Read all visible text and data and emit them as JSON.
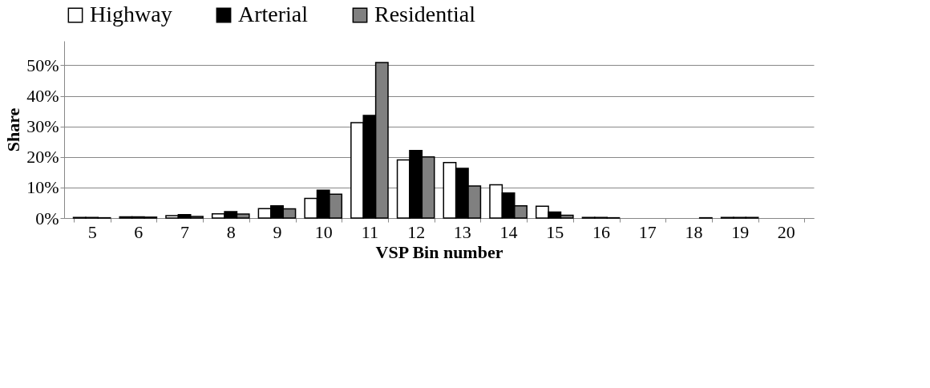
{
  "chart_data": {
    "type": "bar",
    "xlabel": "VSP Bin number",
    "ylabel": "Share",
    "categories": [
      "5",
      "6",
      "7",
      "8",
      "9",
      "10",
      "11",
      "12",
      "13",
      "14",
      "15",
      "16",
      "17",
      "18",
      "19",
      "20"
    ],
    "series": [
      {
        "name": "Highway",
        "color": "#ffffff",
        "values": [
          0.2,
          0.4,
          0.8,
          1.4,
          3.1,
          6.4,
          31.2,
          19.0,
          18.2,
          10.9,
          3.9,
          0.2,
          0,
          0,
          0.2,
          0
        ]
      },
      {
        "name": "Arterial",
        "color": "#000000",
        "values": [
          0.2,
          0.4,
          1.1,
          2.1,
          4.0,
          9.1,
          33.6,
          22.1,
          16.3,
          8.2,
          2.0,
          0.2,
          0,
          0,
          0.2,
          0
        ]
      },
      {
        "name": "Residential",
        "color": "#808080",
        "values": [
          0.1,
          0.3,
          0.5,
          1.3,
          3.0,
          7.8,
          50.9,
          20.0,
          10.5,
          4.0,
          0.9,
          0.1,
          0,
          0.1,
          0.2,
          0
        ]
      }
    ],
    "ylim": [
      0,
      58
    ],
    "yticks": [
      {
        "value": 0,
        "label": "0%"
      },
      {
        "value": 10,
        "label": "10%"
      },
      {
        "value": 20,
        "label": "20%"
      },
      {
        "value": 30,
        "label": "30%"
      },
      {
        "value": 40,
        "label": "40%"
      },
      {
        "value": 50,
        "label": "50%"
      }
    ],
    "grid": "y",
    "legend": "top"
  }
}
